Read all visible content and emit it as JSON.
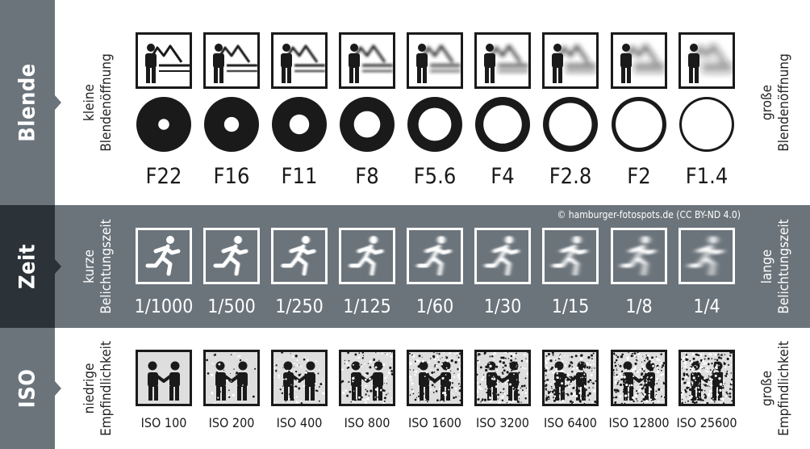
{
  "rows": {
    "blende": {
      "title": "Blende",
      "left_line1": "kleine",
      "left_line2": "Blendenöffnung",
      "right_line1": "große",
      "right_line2": "Blendenöffnung",
      "stops": [
        {
          "label": "F22",
          "opening": 0.2
        },
        {
          "label": "F16",
          "opening": 0.27
        },
        {
          "label": "F11",
          "opening": 0.36
        },
        {
          "label": "F8",
          "opening": 0.48
        },
        {
          "label": "F5.6",
          "opening": 0.6
        },
        {
          "label": "F4",
          "opening": 0.7
        },
        {
          "label": "F2.8",
          "opening": 0.78
        },
        {
          "label": "F2",
          "opening": 0.85
        },
        {
          "label": "F1.4",
          "opening": 0.91
        }
      ]
    },
    "zeit": {
      "title": "Zeit",
      "left_line1": "kurze",
      "left_line2": "Belichtungszeit",
      "right_line1": "lange",
      "right_line2": "Belichtungszeit",
      "copyright": "© hamburger-fotospots.de (CC BY-ND 4.0)",
      "speeds": [
        "1/1000",
        "1/500",
        "1/250",
        "1/125",
        "1/60",
        "1/30",
        "1/15",
        "1/8",
        "1/4"
      ]
    },
    "iso": {
      "title": "ISO",
      "left_line1": "niedrige",
      "left_line2": "Empfindlichkeit",
      "right_line1": "große",
      "right_line2": "Empfindlichkeit",
      "values": [
        "ISO 100",
        "ISO 200",
        "ISO 400",
        "ISO 800",
        "ISO 1600",
        "ISO 3200",
        "ISO 6400",
        "ISO 12800",
        "ISO 25600"
      ]
    }
  },
  "icons": {
    "landscape": "person-mountain-icon",
    "aperture": "aperture-icon",
    "runner": "running-person-icon",
    "handshake": "handshake-icon"
  },
  "colors": {
    "dark_gray": "#6b747b",
    "darkest": "#2b3338",
    "ink": "#1a1a1a"
  }
}
